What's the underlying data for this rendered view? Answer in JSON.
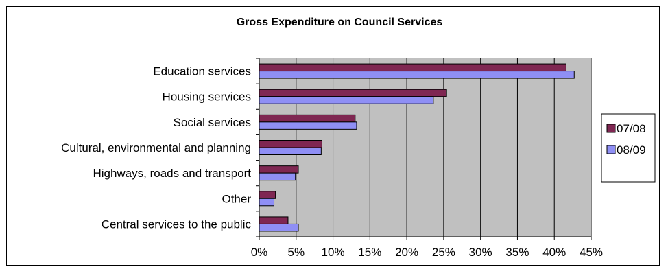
{
  "chart_data": {
    "type": "bar",
    "orientation": "horizontal",
    "title": "Gross Expenditure on Council Services",
    "categories": [
      "Education services",
      "Housing services",
      "Social services",
      "Cultural, environmental and planning",
      "Highways, roads and transport",
      "Other",
      "Central services to the public"
    ],
    "series": [
      {
        "name": "07/08",
        "color": "#7f2752",
        "values": [
          41.6,
          25.4,
          13.0,
          8.5,
          5.3,
          2.2,
          3.9
        ]
      },
      {
        "name": "08/09",
        "color": "#8f8ff5",
        "values": [
          42.7,
          23.6,
          13.2,
          8.4,
          4.9,
          2.0,
          5.3
        ]
      }
    ],
    "xlim": [
      0,
      45
    ],
    "xticks": [
      "0%",
      "5%",
      "10%",
      "15%",
      "20%",
      "25%",
      "30%",
      "35%",
      "40%",
      "45%"
    ],
    "tick_step": 5,
    "plot_background": "#c0c0c0",
    "grid": true,
    "legend_position": "right"
  }
}
